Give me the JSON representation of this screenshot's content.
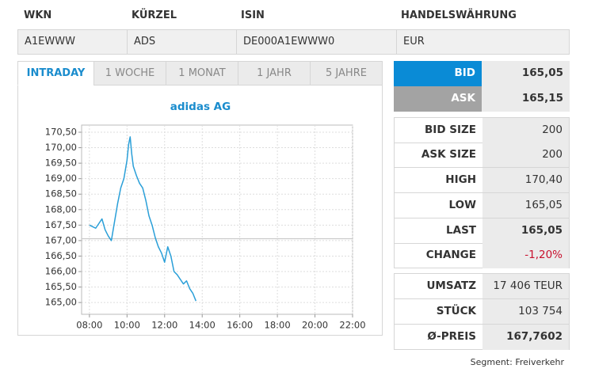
{
  "header": {
    "columns": [
      "WKN",
      "KÜRZEL",
      "ISIN",
      "HANDELSWÄHRUNG"
    ],
    "values": [
      "A1EWWW",
      "ADS",
      "DE000A1EWWW0",
      "EUR"
    ]
  },
  "tabs": [
    "INTRADAY",
    "1 WOCHE",
    "1 MONAT",
    "1 JAHR",
    "5 JAHRE"
  ],
  "chart_data": {
    "type": "line",
    "title": "adidas AG",
    "x": [
      "08:00",
      "08:10",
      "08:20",
      "08:30",
      "08:40",
      "08:50",
      "09:00",
      "09:10",
      "09:20",
      "09:30",
      "09:40",
      "09:50",
      "10:00",
      "10:05",
      "10:10",
      "10:15",
      "10:20",
      "10:30",
      "10:40",
      "10:50",
      "11:00",
      "11:10",
      "11:20",
      "11:30",
      "11:40",
      "11:50",
      "12:00",
      "12:10",
      "12:20",
      "12:30",
      "12:40",
      "12:50",
      "13:00",
      "13:10",
      "13:20",
      "13:30",
      "13:40"
    ],
    "values": [
      167.5,
      167.45,
      167.4,
      167.55,
      167.7,
      167.35,
      167.15,
      167.0,
      167.6,
      168.2,
      168.7,
      169.0,
      169.6,
      170.1,
      170.35,
      169.8,
      169.4,
      169.1,
      168.85,
      168.7,
      168.3,
      167.8,
      167.5,
      167.1,
      166.8,
      166.6,
      166.3,
      166.8,
      166.5,
      166.0,
      165.9,
      165.75,
      165.6,
      165.7,
      165.45,
      165.3,
      165.05
    ],
    "color": "#2a9fd8",
    "reference_line": 167.06,
    "xlim": [
      "07:35",
      "22:00"
    ],
    "xticks": [
      "08:00",
      "10:00",
      "12:00",
      "14:00",
      "16:00",
      "18:00",
      "20:00",
      "22:00"
    ],
    "ylim": [
      164.62,
      170.73
    ],
    "yticks": [
      {
        "value": 165,
        "label": "165,00"
      },
      {
        "value": 165.5,
        "label": "165,50"
      },
      {
        "value": 166,
        "label": "166,00"
      },
      {
        "value": 166.5,
        "label": "166,50"
      },
      {
        "value": 167,
        "label": "167,00"
      },
      {
        "value": 167.5,
        "label": "167,50"
      },
      {
        "value": 168,
        "label": "168,00"
      },
      {
        "value": 168.5,
        "label": "168,50"
      },
      {
        "value": 169,
        "label": "169,00"
      },
      {
        "value": 169.5,
        "label": "169,50"
      },
      {
        "value": 170,
        "label": "170,00"
      },
      {
        "value": 170.5,
        "label": "170,50"
      }
    ],
    "grid": true
  },
  "quotes": [
    {
      "label": "BID",
      "value": "165,05"
    },
    {
      "label": "ASK",
      "value": "165,15"
    }
  ],
  "stats": [
    {
      "label": "BID SIZE",
      "value": "200"
    },
    {
      "label": "ASK SIZE",
      "value": "200"
    },
    {
      "label": "HIGH",
      "value": "170,40"
    },
    {
      "label": "LOW",
      "value": "165,05"
    },
    {
      "label": "LAST",
      "value": "165,05"
    },
    {
      "label": "CHANGE",
      "value": "-1,20%"
    }
  ],
  "volume": [
    {
      "label": "UMSATZ",
      "value": "17 406 TEUR"
    },
    {
      "label": "STÜCK",
      "value": "103 754"
    },
    {
      "label": "Ø-PREIS",
      "value": "167,7602"
    }
  ],
  "segment": "Segment: Freiverkehr"
}
